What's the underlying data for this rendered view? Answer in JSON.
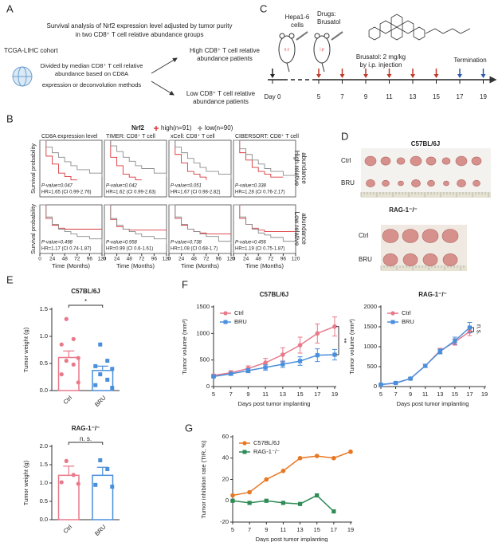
{
  "panel_labels": [
    "A",
    "B",
    "C",
    "D",
    "E",
    "F",
    "G"
  ],
  "panel_a": {
    "title": [
      "Survival analysis of Nrf2 expression level adjusted by tumor purity",
      "in two CD8⁺ T cell relative abundance groups"
    ],
    "cohort": "TCGA-LIHC cohort",
    "method": [
      "Divided by median CD8⁺ T cell relative",
      "abundance based on CD8A",
      "expression or deconvolution methods"
    ],
    "high": [
      "High CD8⁺ T cell relative",
      "abundance patients"
    ],
    "low": [
      "Low CD8⁺ T cell relative",
      "abundance patients"
    ]
  },
  "panel_c": {
    "cells": [
      "Hepa1-6",
      "cells"
    ],
    "route": [
      "s.c",
      "i.p"
    ],
    "drug": [
      "Drugs:",
      "Brusatol"
    ],
    "dose": [
      "Brusatol: 2 mg/kg",
      "by i.p. injection"
    ],
    "termination": "Termination",
    "timeline": [
      "Day 0",
      "5",
      "7",
      "9",
      "11",
      "13",
      "15",
      "17",
      "19"
    ]
  },
  "panel_b": {
    "legend_title": "Nrf2",
    "legend": [
      {
        "name": "high(n=91)",
        "color": "#d9373b"
      },
      {
        "name": "low(n=90)",
        "color": "#8c8c8c"
      }
    ],
    "columns": [
      "CD8A expression level",
      "TIMER: CD8⁺ T cell",
      "xCell: CD8⁺ T cell",
      "CIBERSORT: CD8⁺ T cell"
    ],
    "rows": [
      [
        "High relative",
        "abundance"
      ],
      [
        "Low relative",
        "abundance"
      ]
    ]
  },
  "panel_d": {
    "groups": [
      {
        "title": "C57BL/6J",
        "rows": [
          "Ctrl",
          "BRU"
        ]
      },
      {
        "title": "RAG-1⁻/⁻",
        "rows": [
          "Ctrl",
          "BRU"
        ]
      }
    ]
  },
  "chart_data": [
    {
      "type": "step",
      "y_label": "Survival probability",
      "x": [
        0,
        12,
        24,
        36,
        48,
        60,
        72,
        96,
        120
      ],
      "xlim": [
        0,
        120
      ],
      "ylim": [
        0,
        1
      ],
      "series": [
        {
          "color": "#d9373b",
          "values": [
            1,
            0.72,
            0.58,
            0.42,
            0.36,
            0.3,
            0.3,
            null,
            null
          ]
        },
        {
          "color": "#8c8c8c",
          "values": [
            1,
            0.88,
            0.78,
            0.7,
            0.62,
            0.55,
            0.48,
            0.42,
            0.35
          ]
        }
      ],
      "annotations": [
        "P-value=0.047",
        "HR=1.65 (CI 0.99-2.76)"
      ]
    },
    {
      "type": "step",
      "x": [
        0,
        12,
        24,
        36,
        48,
        60,
        72,
        96,
        120
      ],
      "xlim": [
        0,
        120
      ],
      "ylim": [
        0,
        1
      ],
      "series": [
        {
          "color": "#d9373b",
          "values": [
            1,
            0.7,
            0.55,
            0.4,
            0.35,
            0.3,
            0.3,
            null,
            null
          ]
        },
        {
          "color": "#8c8c8c",
          "values": [
            1,
            0.9,
            0.8,
            0.7,
            0.63,
            0.55,
            0.5,
            0.42,
            0.35
          ]
        }
      ],
      "annotations": [
        "P-value=0.042",
        "HR=1.62 (CI 0.99-2.63)"
      ]
    },
    {
      "type": "step",
      "x": [
        0,
        12,
        24,
        36,
        48,
        60,
        72,
        96,
        120
      ],
      "xlim": [
        0,
        120
      ],
      "ylim": [
        0,
        1
      ],
      "series": [
        {
          "color": "#d9373b",
          "values": [
            1,
            0.75,
            0.6,
            0.45,
            0.4,
            0.35,
            0.3,
            null,
            null
          ]
        },
        {
          "color": "#8c8c8c",
          "values": [
            1,
            0.88,
            0.78,
            0.68,
            0.6,
            0.52,
            0.45,
            0.4,
            0.32
          ]
        }
      ],
      "annotations": [
        "P-value=0.051",
        "HR=1.67 (CI 0.98-2.82)"
      ]
    },
    {
      "type": "step",
      "x": [
        0,
        12,
        24,
        36,
        48,
        60,
        72,
        96,
        120
      ],
      "xlim": [
        0,
        120
      ],
      "ylim": [
        0,
        1
      ],
      "series": [
        {
          "color": "#d9373b",
          "values": [
            1,
            0.78,
            0.65,
            0.52,
            0.45,
            0.4,
            0.35,
            0.35,
            null
          ]
        },
        {
          "color": "#8c8c8c",
          "values": [
            1,
            0.85,
            0.75,
            0.65,
            0.58,
            0.5,
            0.45,
            0.38,
            0.3
          ]
        }
      ],
      "annotations": [
        "P-value=0.338",
        "HR=1.28 (CI 0.76-2.17)"
      ]
    },
    {
      "type": "step",
      "y_label": "Survival probability",
      "x_label": "Time (Months)",
      "x": [
        0,
        12,
        24,
        36,
        48,
        60,
        72,
        96,
        120
      ],
      "xlim": [
        0,
        120
      ],
      "xticks": [
        0,
        24,
        48,
        72,
        96,
        120
      ],
      "ylim": [
        0,
        1
      ],
      "series": [
        {
          "color": "#d9373b",
          "values": [
            1,
            0.72,
            0.58,
            0.52,
            0.5,
            0.5,
            0.5,
            0.5,
            0.5
          ]
        },
        {
          "color": "#8c8c8c",
          "values": [
            1,
            0.75,
            0.6,
            0.5,
            0.45,
            0.4,
            0.35,
            0.3,
            0.2
          ]
        }
      ],
      "annotations": [
        "P-value=0.498",
        "HR=1.17 (CI 0.74-1.87)"
      ]
    },
    {
      "type": "step",
      "x_label": "Time (Months)",
      "x": [
        0,
        12,
        24,
        36,
        48,
        60,
        72,
        96,
        120
      ],
      "xlim": [
        0,
        120
      ],
      "xticks": [
        0,
        24,
        48,
        72,
        96,
        120
      ],
      "ylim": [
        0,
        1
      ],
      "series": [
        {
          "color": "#d9373b",
          "values": [
            1,
            0.7,
            0.55,
            0.5,
            0.48,
            0.48,
            0.48,
            0.48,
            0.48
          ]
        },
        {
          "color": "#8c8c8c",
          "values": [
            1,
            0.72,
            0.58,
            0.5,
            0.45,
            0.4,
            0.35,
            0.3,
            0.2
          ]
        }
      ],
      "annotations": [
        "P-value=0.958",
        "HR=0.99 (CI 0.6-1.61)"
      ]
    },
    {
      "type": "step",
      "x_label": "Time (Months)",
      "x": [
        0,
        12,
        24,
        36,
        48,
        60,
        72,
        96,
        120
      ],
      "xlim": [
        0,
        120
      ],
      "xticks": [
        0,
        24,
        48,
        72,
        96,
        120
      ],
      "ylim": [
        0,
        1
      ],
      "series": [
        {
          "color": "#d9373b",
          "values": [
            1,
            0.72,
            0.58,
            0.5,
            0.45,
            0.42,
            0.4,
            0.4,
            0.4
          ]
        },
        {
          "color": "#8c8c8c",
          "values": [
            1,
            0.75,
            0.6,
            0.5,
            0.45,
            0.4,
            0.35,
            0.25,
            0.2
          ]
        }
      ],
      "annotations": [
        "P-value=0.738",
        "HR=1.08 (CI 0.68-1.7)"
      ]
    },
    {
      "type": "step",
      "x_label": "Time (Months)",
      "x": [
        0,
        12,
        24,
        36,
        48,
        60,
        72,
        96,
        120
      ],
      "xlim": [
        0,
        120
      ],
      "xticks": [
        0,
        24,
        48,
        72,
        96,
        120
      ],
      "ylim": [
        0,
        1
      ],
      "series": [
        {
          "color": "#d9373b",
          "values": [
            1,
            0.72,
            0.6,
            0.52,
            0.48,
            0.45,
            0.45,
            0.45,
            0.45
          ]
        },
        {
          "color": "#8c8c8c",
          "values": [
            1,
            0.75,
            0.6,
            0.5,
            0.42,
            0.38,
            0.33,
            0.25,
            0.2
          ]
        }
      ],
      "annotations": [
        "P-value=0.456",
        "HR=1.19 (CI 0.75-1.87)"
      ]
    },
    {
      "type": "bar",
      "title": "C57BL/6J",
      "y_label": "Tumor weight (g)",
      "categories": [
        "Ctrl",
        "BRU"
      ],
      "values": [
        0.61,
        0.37
      ],
      "errors": [
        0.12,
        0.08
      ],
      "points": [
        [
          1.32,
          0.95,
          0.85,
          0.6,
          0.55,
          0.48,
          0.3,
          0.15
        ],
        [
          0.85,
          0.55,
          0.45,
          0.4,
          0.3,
          0.2,
          0.1,
          0.05
        ]
      ],
      "colors": [
        "#e8798a",
        "#4a8fdc"
      ],
      "ylim": [
        0,
        1.5
      ],
      "yticks": [
        {
          "value": 0,
          "label": "0.0"
        },
        0.5,
        {
          "value": 1,
          "label": "1.0"
        },
        1.5
      ],
      "annotation": "*"
    },
    {
      "type": "bar",
      "title": "RAG-1⁻/⁻",
      "y_label": "Tumor weight (g)",
      "categories": [
        "Ctrl",
        "BRU"
      ],
      "values": [
        1.21,
        1.21
      ],
      "errors": [
        0.25,
        0.22
      ],
      "points": [
        [
          1.6,
          1.22,
          1.02,
          0.98
        ],
        [
          1.62,
          1.38,
          0.95,
          0.9
        ]
      ],
      "colors": [
        "#e8798a",
        "#4a8fdc"
      ],
      "ylim": [
        0,
        2
      ],
      "yticks": [
        {
          "value": 0,
          "label": "0.0"
        },
        0.5,
        {
          "value": 1,
          "label": "1.0"
        },
        1.5,
        {
          "value": 2,
          "label": "2.0"
        }
      ],
      "annotation": "n. s."
    },
    {
      "type": "line",
      "title": "C57BL/6J",
      "x_label": "Days post tumor implanting",
      "y_label": "Tumor volume (mm³)",
      "x": [
        5,
        7,
        9,
        11,
        13,
        15,
        17,
        19
      ],
      "xlim": [
        5,
        19
      ],
      "xticks": [
        5,
        7,
        9,
        11,
        13,
        15,
        17,
        19
      ],
      "ylim": [
        0,
        1500
      ],
      "yticks": [
        0,
        500,
        1000,
        1500
      ],
      "legend": "upper-left",
      "series": [
        {
          "name": "Ctrl",
          "color": "#e8798a",
          "values": [
            210,
            260,
            340,
            450,
            600,
            780,
            1000,
            1130
          ],
          "errors": [
            20,
            40,
            50,
            80,
            130,
            150,
            180,
            180
          ]
        },
        {
          "name": "BRU",
          "color": "#4a8fdc",
          "values": [
            190,
            240,
            300,
            360,
            420,
            480,
            590,
            600
          ],
          "errors": [
            20,
            30,
            40,
            50,
            60,
            80,
            120,
            100
          ]
        }
      ],
      "annotation": "**"
    },
    {
      "type": "line",
      "title": "RAG-1⁻/⁻",
      "x_label": "Days post tumor implanting",
      "y_label": "Tumor volume (mm³)",
      "x": [
        5,
        7,
        9,
        11,
        13,
        15,
        17,
        19
      ],
      "xlim": [
        5,
        19
      ],
      "xticks": [
        5,
        7,
        9,
        11,
        13,
        15,
        17,
        19
      ],
      "ylim": [
        0,
        2000
      ],
      "yticks": [
        0,
        500,
        1000,
        1500,
        2000
      ],
      "legend": "upper-left",
      "series": [
        {
          "name": "Ctrl",
          "color": "#e8798a",
          "values": [
            50,
            90,
            200,
            520,
            900,
            1120,
            1380,
            null
          ],
          "errors": [
            10,
            15,
            25,
            40,
            60,
            80,
            100,
            null
          ]
        },
        {
          "name": "BRU",
          "color": "#4a8fdc",
          "values": [
            50,
            90,
            200,
            520,
            880,
            1150,
            1480,
            null
          ],
          "errors": [
            10,
            15,
            25,
            40,
            60,
            90,
            130,
            null
          ]
        }
      ],
      "annotation": "n.s."
    },
    {
      "type": "line",
      "x_label": "Days post tumor implanting",
      "y_label": "Tumor inhibition rate (TIR, %)",
      "x": [
        5,
        7,
        9,
        11,
        13,
        15,
        17,
        19
      ],
      "xlim": [
        5,
        19
      ],
      "xticks": [
        5,
        7,
        9,
        11,
        13,
        15,
        17,
        19
      ],
      "ylim": [
        -20,
        60
      ],
      "yticks": [
        -20,
        0,
        20,
        40,
        60
      ],
      "legend": "upper-left",
      "series": [
        {
          "name": "C57BL/6J",
          "color": "#e87722",
          "values": [
            5,
            8,
            20,
            28,
            40,
            42,
            40,
            46
          ]
        },
        {
          "name": "RAG-1⁻/⁻",
          "color": "#2e8b57",
          "values": [
            0,
            -2,
            0,
            -2,
            -3,
            5,
            -10,
            null
          ]
        }
      ]
    }
  ]
}
